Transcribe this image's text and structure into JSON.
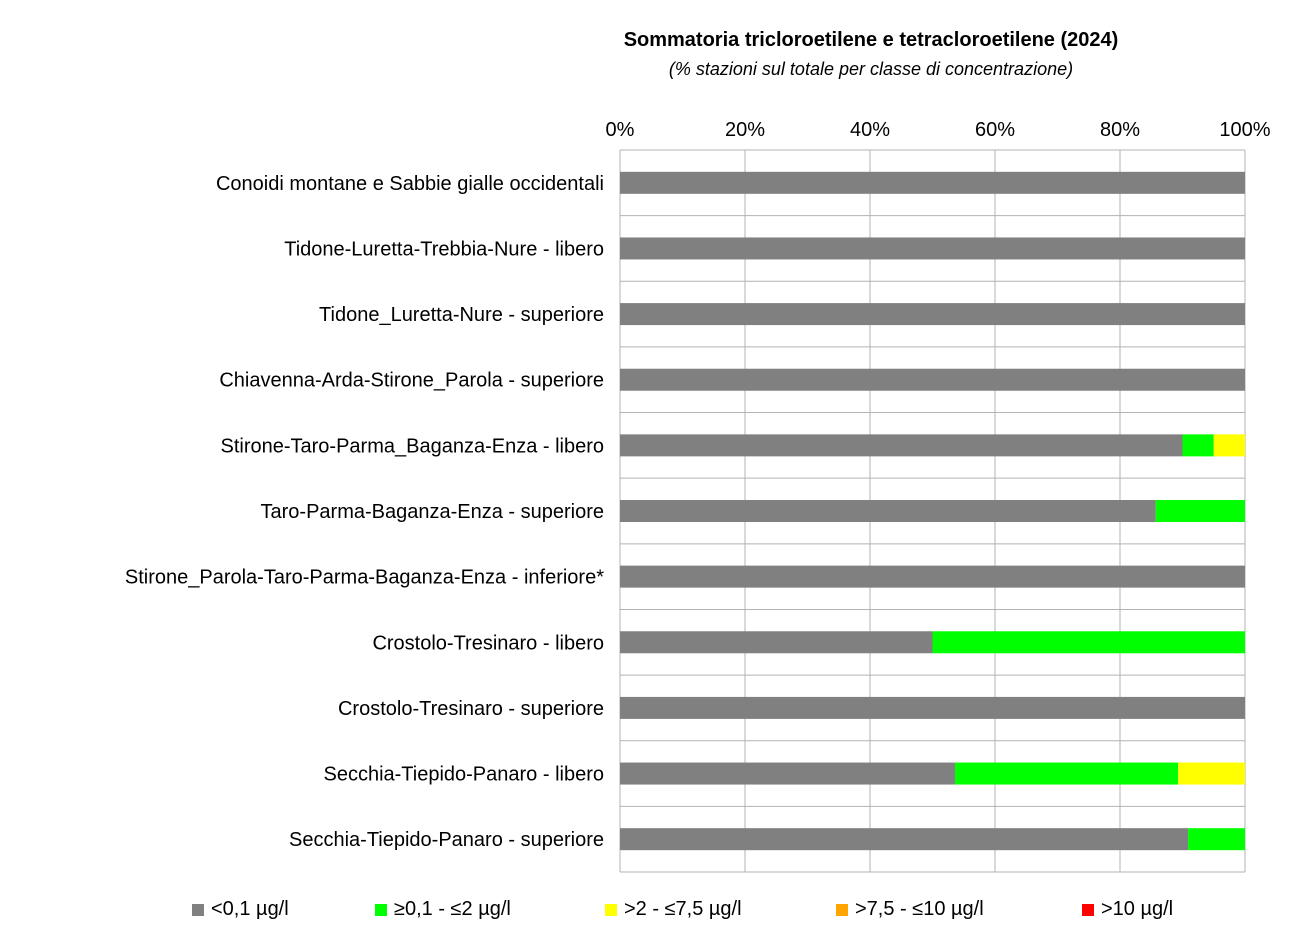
{
  "chart_data": {
    "type": "bar",
    "orientation": "horizontal-stacked-100",
    "title": "Sommatoria tricloroetilene e tetracloroetilene (2024)",
    "subtitle": "(% stazioni sul totale per classe di concentrazione)",
    "xlim": [
      0,
      100
    ],
    "x_ticks": [
      "0%",
      "20%",
      "40%",
      "60%",
      "80%",
      "100%"
    ],
    "legend_position": "bottom",
    "categories": [
      "Conoidi montane e Sabbie gialle occidentali",
      "Tidone-Luretta-Trebbia-Nure - libero",
      "Tidone_Luretta-Nure - superiore",
      "Chiavenna-Arda-Stirone_Parola - superiore",
      "Stirone-Taro-Parma_Baganza-Enza - libero",
      "Taro-Parma-Baganza-Enza - superiore",
      "Stirone_Parola-Taro-Parma-Baganza-Enza - inferiore*",
      "Crostolo-Tresinaro - libero",
      "Crostolo-Tresinaro - superiore",
      "Secchia-Tiepido-Panaro - libero",
      "Secchia-Tiepido-Panaro - superiore"
    ],
    "series": [
      {
        "name": "<0,1 µg/l",
        "color": "#808080",
        "values": [
          100,
          100,
          100,
          100,
          90,
          85.7,
          100,
          50,
          100,
          53.6,
          90.9
        ]
      },
      {
        "name": "≥0,1 - ≤2 µg/l",
        "color": "#00ff00",
        "values": [
          0,
          0,
          0,
          0,
          5,
          14.3,
          0,
          50,
          0,
          35.7,
          9.1
        ]
      },
      {
        "name": ">2 - ≤7,5 µg/l",
        "color": "#ffff00",
        "values": [
          0,
          0,
          0,
          0,
          5,
          0,
          0,
          0,
          0,
          10.7,
          0
        ]
      },
      {
        "name": ">7,5 - ≤10 µg/l",
        "color": "#ffa500",
        "values": [
          0,
          0,
          0,
          0,
          0,
          0,
          0,
          0,
          0,
          0,
          0
        ]
      },
      {
        "name": ">10 µg/l",
        "color": "#ff0000",
        "values": [
          0,
          0,
          0,
          0,
          0,
          0,
          0,
          0,
          0,
          0,
          0
        ]
      }
    ]
  }
}
